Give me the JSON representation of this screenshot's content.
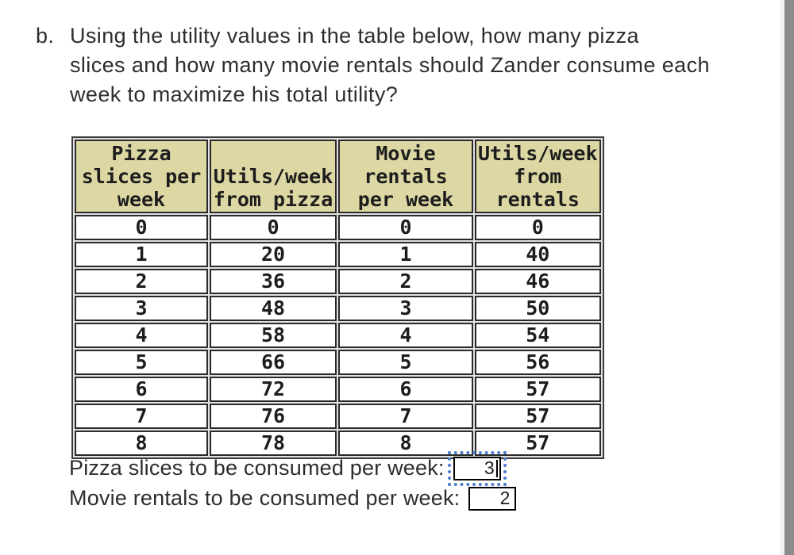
{
  "question": {
    "label": "b.",
    "lines": [
      "Using the utility values in the table below, how many pizza",
      "slices and how many movie rentals should Zander consume each",
      "week to maximize his total utility?"
    ]
  },
  "table": {
    "headers": [
      "Pizza\nslices per\nweek",
      "Utils/week\nfrom pizza",
      "Movie\nrentals\nper week",
      "Utils/week\nfrom\nrentals"
    ],
    "rows": [
      [
        "0",
        "0",
        "0",
        "0"
      ],
      [
        "1",
        "20",
        "1",
        "40"
      ],
      [
        "2",
        "36",
        "2",
        "46"
      ],
      [
        "3",
        "48",
        "3",
        "50"
      ],
      [
        "4",
        "58",
        "4",
        "54"
      ],
      [
        "5",
        "66",
        "5",
        "56"
      ],
      [
        "6",
        "72",
        "6",
        "57"
      ],
      [
        "7",
        "76",
        "7",
        "57"
      ],
      [
        "8",
        "78",
        "8",
        "57"
      ]
    ]
  },
  "answers": {
    "pizza_label": "Pizza slices to be consumed per week:",
    "pizza_value": "3",
    "movie_label": "Movie rentals to be consumed per week:",
    "movie_value": "2"
  },
  "colors": {
    "header_bg": "#ddd7a4",
    "table_border": "#2a2a2a",
    "focus_ring_blue": "#4d7cc9",
    "scrollbar_thumb": "#8c8c8c",
    "text": "#2d2d2d"
  }
}
